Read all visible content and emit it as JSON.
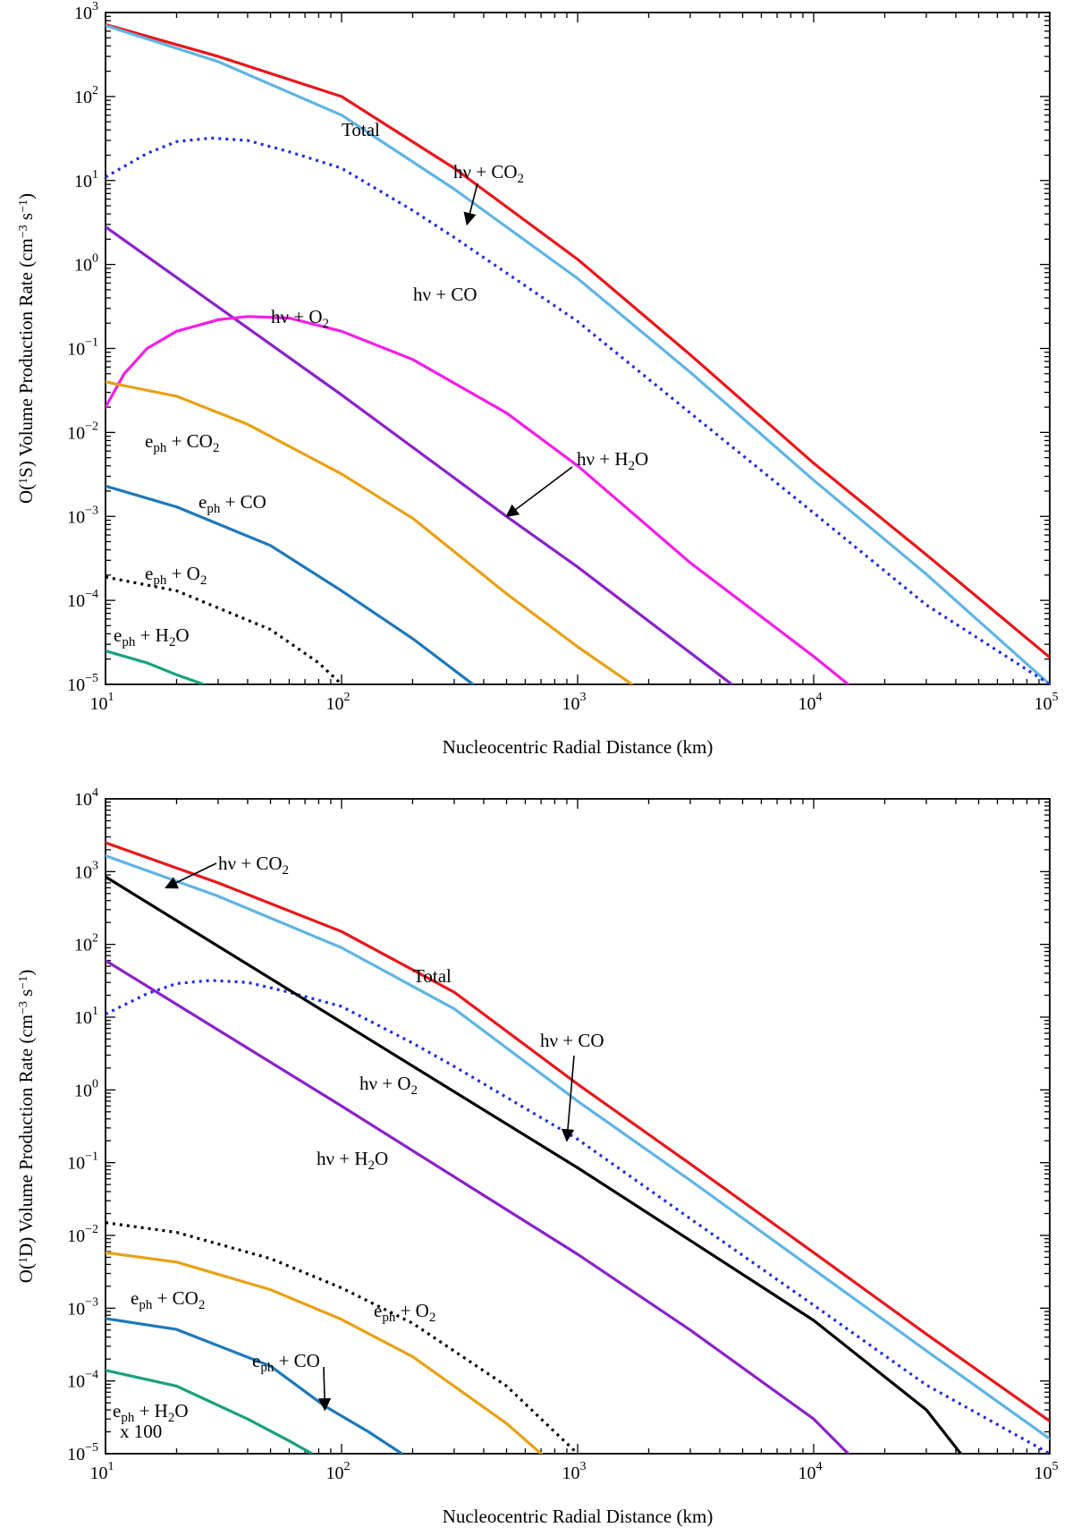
{
  "chart_data": [
    {
      "type": "line",
      "name": "o1s-panel",
      "xscale": "log",
      "yscale": "log",
      "xlim": [
        10,
        100000
      ],
      "ylim": [
        1e-05,
        1000
      ],
      "xlabel": "Nucleocentric Radial Distance (km)",
      "ylabel_parts": [
        "O(",
        "1",
        "S) Volume Production Rate (cm",
        "−3",
        " s",
        "−1",
        ")"
      ],
      "x_ticks": [
        {
          "base": "10",
          "exp": "1",
          "value": 10
        },
        {
          "base": "10",
          "exp": "2",
          "value": 100
        },
        {
          "base": "10",
          "exp": "3",
          "value": 1000
        },
        {
          "base": "10",
          "exp": "4",
          "value": 10000
        },
        {
          "base": "10",
          "exp": "5",
          "value": 100000
        }
      ],
      "y_ticks": [
        {
          "base": "10",
          "exp": "−5",
          "value": 1e-05
        },
        {
          "base": "10",
          "exp": "−4",
          "value": 0.0001
        },
        {
          "base": "10",
          "exp": "−3",
          "value": 0.001
        },
        {
          "base": "10",
          "exp": "−2",
          "value": 0.01
        },
        {
          "base": "10",
          "exp": "−1",
          "value": 0.1
        },
        {
          "base": "10",
          "exp": "0",
          "value": 1
        },
        {
          "base": "10",
          "exp": "1",
          "value": 10
        },
        {
          "base": "10",
          "exp": "2",
          "value": 100
        },
        {
          "base": "10",
          "exp": "3",
          "value": 1000
        }
      ],
      "series": [
        {
          "name": "Total",
          "color": "#e8161b",
          "dash": "solid",
          "x": [
            10,
            30,
            100,
            300,
            1000,
            3000,
            10000,
            30000,
            100000
          ],
          "y": [
            720,
            300,
            100,
            14,
            1.15,
            0.084,
            0.0043,
            0.00035,
            2.1e-05
          ]
        },
        {
          "name": "hν + CO2",
          "color": "#5fb4e4",
          "dash": "solid",
          "x": [
            10,
            30,
            100,
            300,
            1000,
            3000,
            10000,
            30000,
            100000
          ],
          "y": [
            700,
            260,
            60,
            7.9,
            0.68,
            0.052,
            0.0027,
            0.000205,
            1e-05
          ]
        },
        {
          "name": "hν + CO",
          "color": "#1e2ee6",
          "dash": "dotted",
          "x": [
            10,
            15,
            20,
            28,
            40,
            60,
            100,
            200,
            300,
            1000,
            3000,
            10000,
            30000,
            100000
          ],
          "y": [
            11,
            21,
            29,
            32,
            30,
            22,
            14,
            4.4,
            2.1,
            0.21,
            0.017,
            0.0011,
            8.8e-05,
            1e-05
          ]
        },
        {
          "name": "hν + H2O",
          "color": "#8a22c9",
          "dash": "solid",
          "x": [
            10,
            100,
            500,
            1000,
            4500
          ],
          "y": [
            2.8,
            0.028,
            0.001,
            0.00025,
            1e-05
          ]
        },
        {
          "name": "hν + O2",
          "color": "#f21ee8",
          "dash": "solid",
          "x": [
            10,
            12,
            15,
            20,
            30,
            40,
            60,
            100,
            200,
            500,
            1000,
            3000,
            10000,
            14000
          ],
          "y": [
            0.02,
            0.05,
            0.1,
            0.16,
            0.22,
            0.24,
            0.23,
            0.16,
            0.074,
            0.017,
            0.004,
            0.00028,
            2.15e-05,
            1e-05
          ]
        },
        {
          "name": "eph + CO2",
          "color": "#e8a114",
          "dash": "solid",
          "x": [
            10,
            20,
            40,
            100,
            200,
            500,
            1000,
            1700
          ],
          "y": [
            0.04,
            0.027,
            0.0125,
            0.0032,
            0.00095,
            0.00012,
            2.8e-05,
            1e-05
          ]
        },
        {
          "name": "eph + CO",
          "color": "#1e78b8",
          "dash": "solid",
          "x": [
            10,
            20,
            50,
            100,
            200,
            360
          ],
          "y": [
            0.0023,
            0.0013,
            0.00045,
            0.00013,
            3.5e-05,
            1e-05
          ]
        },
        {
          "name": "eph + O2",
          "color": "#000000",
          "dash": "dotted",
          "x": [
            10,
            20,
            50,
            80,
            100
          ],
          "y": [
            0.00019,
            0.00013,
            4.5e-05,
            1.8e-05,
            1e-05
          ]
        },
        {
          "name": "eph + H2O",
          "color": "#1aa07f",
          "dash": "solid",
          "x": [
            10,
            15,
            20,
            26
          ],
          "y": [
            2.5e-05,
            1.8e-05,
            1.3e-05,
            1e-05
          ]
        }
      ],
      "annotations": [
        {
          "id": "total",
          "parts": [
            {
              "t": "Total"
            }
          ]
        },
        {
          "id": "hv-co2",
          "parts": [
            {
              "t": "hν + CO"
            },
            {
              "t": "2",
              "sub": true
            }
          ],
          "arrow_to": {
            "x": 340,
            "y": 3.0
          }
        },
        {
          "id": "hv-co",
          "parts": [
            {
              "t": "hν + CO"
            }
          ]
        },
        {
          "id": "hv-o2",
          "parts": [
            {
              "t": "hν + O"
            },
            {
              "t": "2",
              "sub": true
            }
          ]
        },
        {
          "id": "hv-h2o",
          "parts": [
            {
              "t": "hν + H"
            },
            {
              "t": "2",
              "sub": true
            },
            {
              "t": "O"
            }
          ],
          "arrow_to": {
            "x": 500,
            "y": 0.001
          }
        },
        {
          "id": "eph-co2",
          "parts": [
            {
              "t": "e"
            },
            {
              "t": "ph",
              "sub": true
            },
            {
              "t": " + CO"
            },
            {
              "t": "2",
              "sub": true
            }
          ]
        },
        {
          "id": "eph-co",
          "parts": [
            {
              "t": "e"
            },
            {
              "t": "ph",
              "sub": true
            },
            {
              "t": " + CO"
            }
          ]
        },
        {
          "id": "eph-o2",
          "parts": [
            {
              "t": "e"
            },
            {
              "t": "ph",
              "sub": true
            },
            {
              "t": " + O"
            },
            {
              "t": "2",
              "sub": true
            }
          ]
        },
        {
          "id": "eph-h2o",
          "parts": [
            {
              "t": "e"
            },
            {
              "t": "ph",
              "sub": true
            },
            {
              "t": " + H"
            },
            {
              "t": "2",
              "sub": true
            },
            {
              "t": "O"
            }
          ]
        }
      ]
    },
    {
      "type": "line",
      "name": "o1d-panel",
      "xscale": "log",
      "yscale": "log",
      "xlim": [
        10,
        100000
      ],
      "ylim": [
        1e-05,
        10000
      ],
      "xlabel": "Nucleocentric Radial Distance (km)",
      "ylabel_parts": [
        "O(",
        "1",
        "D) Volume Production Rate (cm",
        "−3",
        " s",
        "−1",
        ")"
      ],
      "x_ticks": [
        {
          "base": "10",
          "exp": "1",
          "value": 10
        },
        {
          "base": "10",
          "exp": "2",
          "value": 100
        },
        {
          "base": "10",
          "exp": "3",
          "value": 1000
        },
        {
          "base": "10",
          "exp": "4",
          "value": 10000
        },
        {
          "base": "10",
          "exp": "5",
          "value": 100000
        }
      ],
      "y_ticks": [
        {
          "base": "10",
          "exp": "−5",
          "value": 1e-05
        },
        {
          "base": "10",
          "exp": "−4",
          "value": 0.0001
        },
        {
          "base": "10",
          "exp": "−3",
          "value": 0.001
        },
        {
          "base": "10",
          "exp": "−2",
          "value": 0.01
        },
        {
          "base": "10",
          "exp": "−1",
          "value": 0.1
        },
        {
          "base": "10",
          "exp": "0",
          "value": 1
        },
        {
          "base": "10",
          "exp": "1",
          "value": 10
        },
        {
          "base": "10",
          "exp": "2",
          "value": 100
        },
        {
          "base": "10",
          "exp": "3",
          "value": 1000
        },
        {
          "base": "10",
          "exp": "4",
          "value": 10000
        }
      ],
      "series": [
        {
          "name": "Total",
          "color": "#e8161b",
          "dash": "solid",
          "x": [
            10,
            30,
            100,
            300,
            1000,
            3000,
            10000,
            30000,
            100000
          ],
          "y": [
            2500,
            700,
            150,
            22,
            1.2,
            0.096,
            0.0058,
            0.00044,
            2.8e-05
          ]
        },
        {
          "name": "hν + CO2",
          "color": "#5fb4e4",
          "dash": "solid",
          "x": [
            10,
            30,
            100,
            300,
            1000,
            3000,
            10000,
            30000,
            100000
          ],
          "y": [
            1650,
            460,
            90,
            13,
            0.7,
            0.057,
            0.0034,
            0.00026,
            1.6e-05
          ]
        },
        {
          "name": "hν + CO",
          "color": "#1e2ee6",
          "dash": "dotted",
          "x": [
            10,
            15,
            20,
            28,
            40,
            60,
            100,
            200,
            300,
            1000,
            3000,
            10000,
            30000,
            100000
          ],
          "y": [
            11,
            21,
            29,
            32,
            30,
            22,
            14,
            4.4,
            2.1,
            0.21,
            0.017,
            0.0011,
            8.8e-05,
            1e-05
          ]
        },
        {
          "name": "hν + O2",
          "color": "#000000",
          "dash": "solid",
          "x": [
            10,
            100,
            1000,
            3000,
            10000,
            30000,
            42000
          ],
          "y": [
            850,
            8.5,
            0.085,
            0.0085,
            0.00068,
            4e-05,
            1e-05
          ]
        },
        {
          "name": "hν + H2O",
          "color": "#8a22c9",
          "dash": "solid",
          "x": [
            10,
            100,
            1000,
            3000,
            10000,
            14000
          ],
          "y": [
            60,
            0.6,
            0.0055,
            0.0005,
            3e-05,
            1e-05
          ]
        },
        {
          "name": "eph + O2",
          "color": "#000000",
          "dash": "dotted",
          "x": [
            10,
            20,
            50,
            100,
            200,
            500,
            1000
          ],
          "y": [
            0.015,
            0.011,
            0.0048,
            0.0019,
            0.00062,
            8.5e-05,
            1e-05
          ]
        },
        {
          "name": "eph + CO2",
          "color": "#e8a114",
          "dash": "solid",
          "x": [
            10,
            20,
            50,
            100,
            200,
            500,
            700
          ],
          "y": [
            0.0058,
            0.0043,
            0.0018,
            0.0007,
            0.000215,
            2.6e-05,
            1e-05
          ]
        },
        {
          "name": "eph + CO",
          "color": "#1e78b8",
          "dash": "solid",
          "x": [
            10,
            20,
            50,
            85,
            130,
            180
          ],
          "y": [
            0.00072,
            0.00051,
            0.00016,
            4.5e-05,
            2e-05,
            1e-05
          ]
        },
        {
          "name": "eph + H2O x 100",
          "color": "#1aa07f",
          "dash": "solid",
          "x": [
            10,
            20,
            40,
            60,
            75
          ],
          "y": [
            0.00014,
            8.5e-05,
            3e-05,
            1.5e-05,
            1e-05
          ]
        }
      ],
      "annotations": [
        {
          "id": "hv-co2",
          "parts": [
            {
              "t": "hν + CO"
            },
            {
              "t": "2",
              "sub": true
            }
          ],
          "arrow_to": {
            "x": 18,
            "y": 600
          }
        },
        {
          "id": "total",
          "parts": [
            {
              "t": "Total"
            }
          ]
        },
        {
          "id": "hv-co",
          "parts": [
            {
              "t": "hν + CO"
            }
          ],
          "arrow_to": {
            "x": 900,
            "y": 0.2
          }
        },
        {
          "id": "hv-o2",
          "parts": [
            {
              "t": "hν + O"
            },
            {
              "t": "2",
              "sub": true
            }
          ]
        },
        {
          "id": "hv-h2o",
          "parts": [
            {
              "t": "hν + H"
            },
            {
              "t": "2",
              "sub": true
            },
            {
              "t": "O"
            }
          ]
        },
        {
          "id": "eph-o2",
          "parts": [
            {
              "t": "e"
            },
            {
              "t": "ph",
              "sub": true
            },
            {
              "t": " + O"
            },
            {
              "t": "2",
              "sub": true
            }
          ]
        },
        {
          "id": "eph-co2",
          "parts": [
            {
              "t": "e"
            },
            {
              "t": "ph",
              "sub": true
            },
            {
              "t": " + CO"
            },
            {
              "t": "2",
              "sub": true
            }
          ]
        },
        {
          "id": "eph-co",
          "parts": [
            {
              "t": "e"
            },
            {
              "t": "ph",
              "sub": true
            },
            {
              "t": " + CO"
            }
          ],
          "arrow_to": {
            "x": 85,
            "y": 4e-05
          }
        },
        {
          "id": "eph-h2o",
          "parts": [
            {
              "t": "e"
            },
            {
              "t": "ph",
              "sub": true
            },
            {
              "t": " + H"
            },
            {
              "t": "2",
              "sub": true
            },
            {
              "t": "O"
            }
          ]
        },
        {
          "id": "x100",
          "parts": [
            {
              "t": "x 100"
            }
          ]
        }
      ]
    }
  ]
}
